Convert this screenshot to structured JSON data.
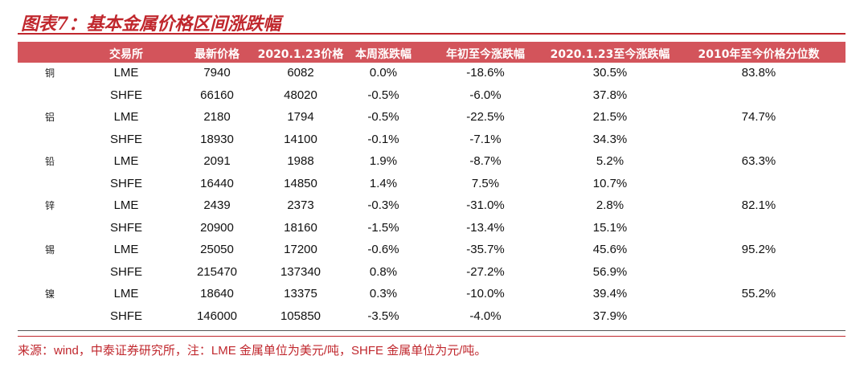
{
  "title": "图表7：基本金属价格区间涨跌幅",
  "colors": {
    "accent": "#c0272d",
    "header_bg": "#d3545b"
  },
  "headers": [
    "交易所",
    "最新价格",
    "2020.1.23价格",
    "本周涨跌幅",
    "年初至今涨跌幅",
    "2020.1.23至今涨跌幅",
    "2010年至今价格分位数"
  ],
  "rows": [
    {
      "metal": "铜",
      "exchange": "LME",
      "latest": "7940",
      "price_0123": "6082",
      "week": "0.0%",
      "ytd": "-18.6%",
      "since_0123": "30.5%",
      "percentile": "83.8%"
    },
    {
      "metal": "",
      "exchange": "SHFE",
      "latest": "66160",
      "price_0123": "48020",
      "week": "-0.5%",
      "ytd": "-6.0%",
      "since_0123": "37.8%",
      "percentile": ""
    },
    {
      "metal": "铝",
      "exchange": "LME",
      "latest": "2180",
      "price_0123": "1794",
      "week": "-0.5%",
      "ytd": "-22.5%",
      "since_0123": "21.5%",
      "percentile": "74.7%"
    },
    {
      "metal": "",
      "exchange": "SHFE",
      "latest": "18930",
      "price_0123": "14100",
      "week": "-0.1%",
      "ytd": "-7.1%",
      "since_0123": "34.3%",
      "percentile": ""
    },
    {
      "metal": "铅",
      "exchange": "LME",
      "latest": "2091",
      "price_0123": "1988",
      "week": "1.9%",
      "ytd": "-8.7%",
      "since_0123": "5.2%",
      "percentile": "63.3%"
    },
    {
      "metal": "",
      "exchange": "SHFE",
      "latest": "16440",
      "price_0123": "14850",
      "week": "1.4%",
      "ytd": "7.5%",
      "since_0123": "10.7%",
      "percentile": ""
    },
    {
      "metal": "锌",
      "exchange": "LME",
      "latest": "2439",
      "price_0123": "2373",
      "week": "-0.3%",
      "ytd": "-31.0%",
      "since_0123": "2.8%",
      "percentile": "82.1%"
    },
    {
      "metal": "",
      "exchange": "SHFE",
      "latest": "20900",
      "price_0123": "18160",
      "week": "-1.5%",
      "ytd": "-13.4%",
      "since_0123": "15.1%",
      "percentile": ""
    },
    {
      "metal": "锡",
      "exchange": "LME",
      "latest": "25050",
      "price_0123": "17200",
      "week": "-0.6%",
      "ytd": "-35.7%",
      "since_0123": "45.6%",
      "percentile": "95.2%"
    },
    {
      "metal": "",
      "exchange": "SHFE",
      "latest": "215470",
      "price_0123": "137340",
      "week": "0.8%",
      "ytd": "-27.2%",
      "since_0123": "56.9%",
      "percentile": ""
    },
    {
      "metal": "镍",
      "exchange": "LME",
      "latest": "18640",
      "price_0123": "13375",
      "week": "0.3%",
      "ytd": "-10.0%",
      "since_0123": "39.4%",
      "percentile": "55.2%"
    },
    {
      "metal": "",
      "exchange": "SHFE",
      "latest": "146000",
      "price_0123": "105850",
      "week": "-3.5%",
      "ytd": "-4.0%",
      "since_0123": "37.9%",
      "percentile": ""
    }
  ],
  "source": "来源：wind，中泰证券研究所，注：LME 金属单位为美元/吨，SHFE 金属单位为元/吨。"
}
